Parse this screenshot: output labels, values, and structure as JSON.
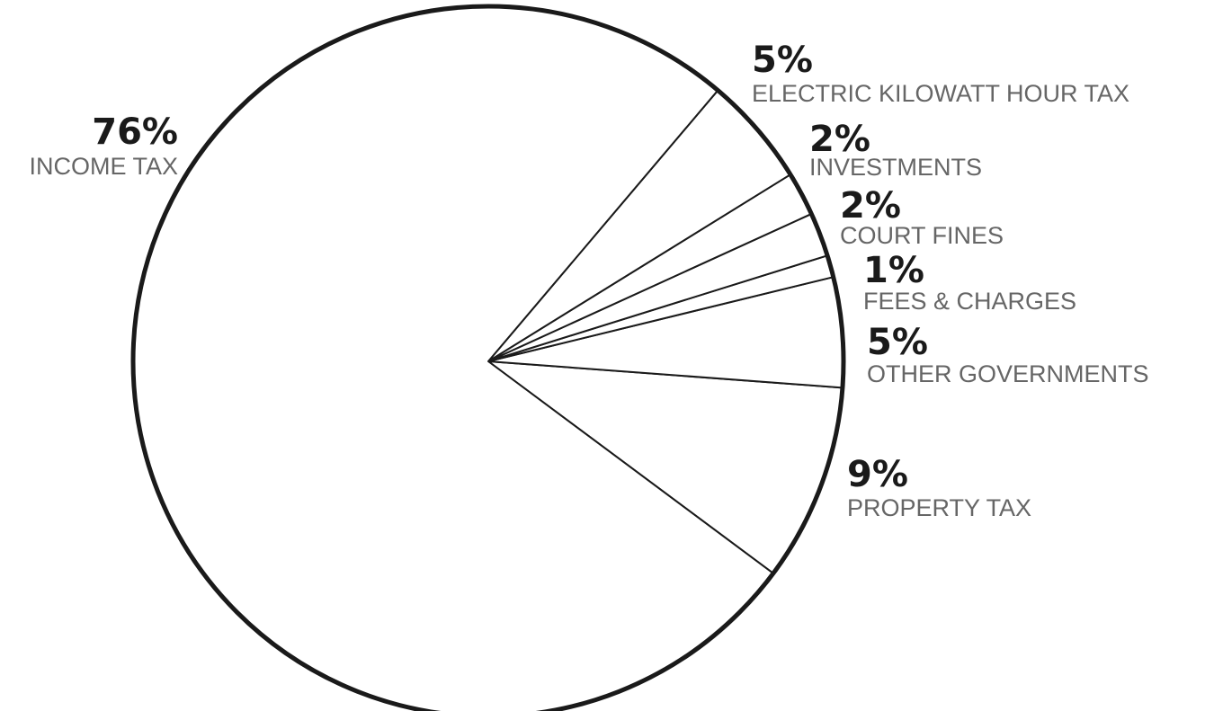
{
  "chart_data": {
    "type": "pie",
    "slices": [
      {
        "label": "INCOME TAX",
        "value": 76,
        "percent_label": "76%"
      },
      {
        "label": "ELECTRIC KILOWATT HOUR TAX",
        "value": 5,
        "percent_label": "5%"
      },
      {
        "label": "INVESTMENTS",
        "value": 2,
        "percent_label": "2%"
      },
      {
        "label": "COURT FINES",
        "value": 2,
        "percent_label": "2%"
      },
      {
        "label": "FEES & CHARGES",
        "value": 1,
        "percent_label": "1%"
      },
      {
        "label": "OTHER GOVERNMENTS",
        "value": 5,
        "percent_label": "5%"
      },
      {
        "label": "PROPERTY TAX",
        "value": 9,
        "percent_label": "9%"
      }
    ],
    "colors": {
      "slice_fill": "#ffffff",
      "slice_stroke": "#1a1a1a",
      "label_text": "#666666",
      "percent_text": "#1a1a1a"
    }
  }
}
